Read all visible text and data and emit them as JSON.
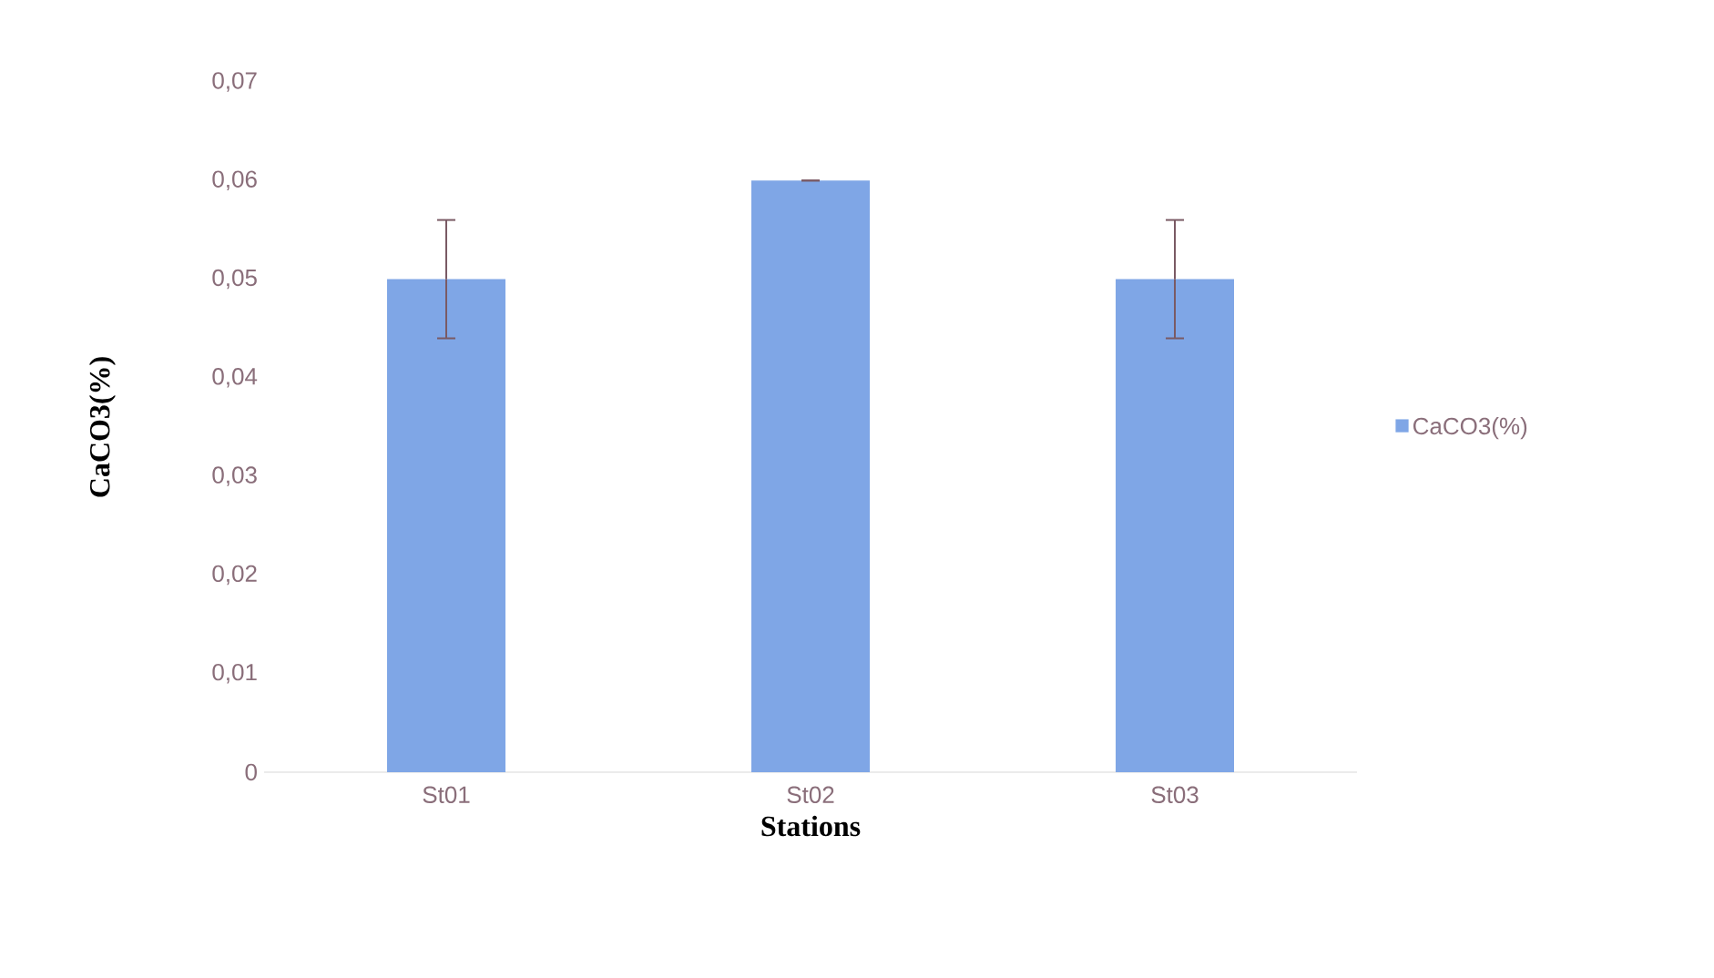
{
  "chart_data": {
    "type": "bar",
    "xlabel": "Stations",
    "ylabel": "CaCO3(%)",
    "categories": [
      "St01",
      "St02",
      "St03"
    ],
    "series": [
      {
        "name": "CaCO3(%)",
        "color": "#7fa6e6",
        "values": [
          0.05,
          0.06,
          0.05
        ],
        "errors": [
          0.006,
          0,
          0.006
        ]
      }
    ],
    "ylim": [
      0,
      0.07
    ],
    "yticks": [
      {
        "value": 0,
        "label": "0"
      },
      {
        "value": 0.01,
        "label": "0,01"
      },
      {
        "value": 0.02,
        "label": "0,02"
      },
      {
        "value": 0.03,
        "label": "0,03"
      },
      {
        "value": 0.04,
        "label": "0,04"
      },
      {
        "value": 0.05,
        "label": "0,05"
      },
      {
        "value": 0.06,
        "label": "0,06"
      },
      {
        "value": 0.07,
        "label": "0,07"
      }
    ],
    "legend": "right"
  }
}
